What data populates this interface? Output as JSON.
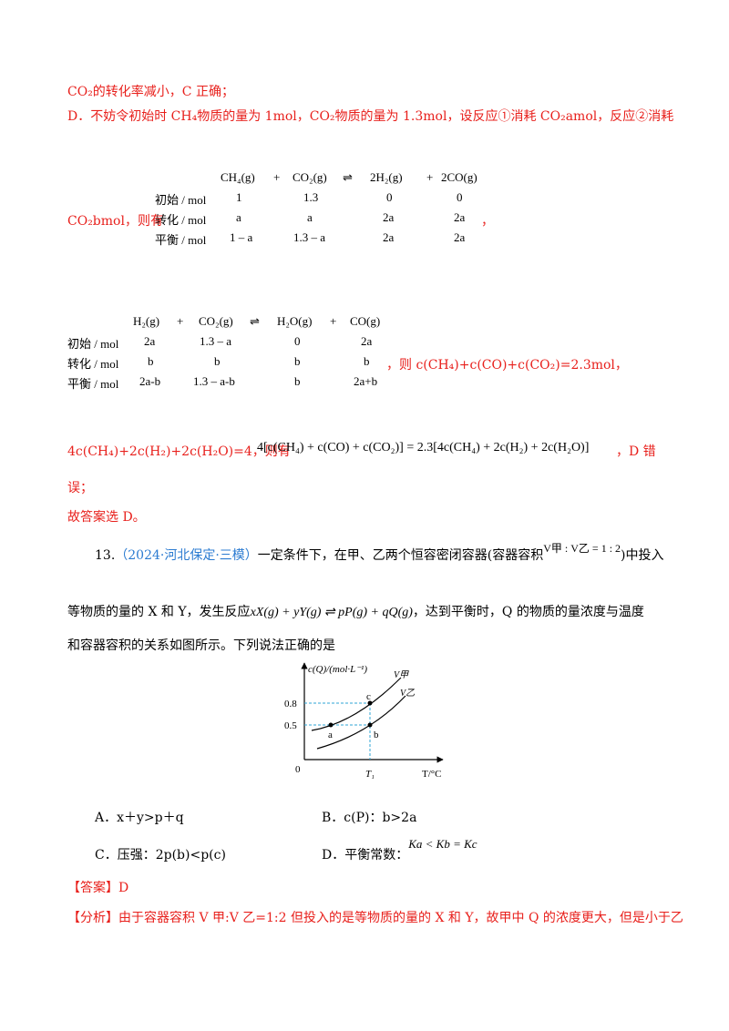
{
  "lines": {
    "l1": "CO₂的转化率减小，C 正确；",
    "l2": "D．不妨令初始时 CH₄物质的量为 1mol，CO₂物质的量为 1.3mol，设反应①消耗 CO₂amol，反应②消耗",
    "l3a": "CO₂bmol，则有",
    "l3b": "，",
    "l4": "，则 c(CH₄)+c(CO)+c(CO₂)=2.3mol，",
    "l5a": "4c(CH₄)+2c(H₂)+2c(H₂O)=4，则有",
    "l5b": "，D 错",
    "l6": "误；",
    "l7": "故答案选 D。"
  },
  "table1": {
    "header": [
      "CH₄(g)",
      "+",
      "CO₂(g)",
      "⇌",
      "2H₂(g)",
      "+",
      "2CO(g)"
    ],
    "rows": [
      {
        "label": "初始 / mol",
        "vals": [
          "1",
          "1.3",
          "0",
          "0"
        ]
      },
      {
        "label": "转化 / mol",
        "vals": [
          "a",
          "a",
          "2a",
          "2a"
        ]
      },
      {
        "label": "平衡 / mol",
        "vals": [
          "1 – a",
          "1.3 – a",
          "2a",
          "2a"
        ]
      }
    ]
  },
  "table2": {
    "header": [
      "H₂(g)",
      "+",
      "CO₂(g)",
      "⇌",
      "H₂O(g)",
      "+",
      "CO(g)"
    ],
    "rows": [
      {
        "label": "初始 / mol",
        "vals": [
          "2a",
          "1.3 – a",
          "0",
          "2a"
        ]
      },
      {
        "label": "转化 / mol",
        "vals": [
          "b",
          "b",
          "b",
          "b"
        ]
      },
      {
        "label": "平衡 / mol",
        "vals": [
          "2a-b",
          "1.3 – a-b",
          "b",
          "2a+b"
        ]
      }
    ]
  },
  "eq_D": "4[c(CH₄) + c(CO) + c(CO₂)] = 2.3[4c(CH₄) + 2c(H₂) + 2c(H₂O)]",
  "question": {
    "number": "13.",
    "source": "（2024·河北保定·三模）",
    "text1": "一定条件下，在甲、乙两个恒容密闭容器(容器容积",
    "ratio": "V甲 : V乙 = 1 : 2",
    "text1b": ")中投入",
    "text2a": "等物质的量的 X 和 Y，发生反应",
    "reaction": "xX(g) + yY(g) ⇌ pP(g) + qQ(g)",
    "text2b": "，达到平衡时，Q 的物质的量浓度与温度",
    "text3": "和容器容积的关系如图所示。下列说法正确的是"
  },
  "graph": {
    "ylabel": "c(Q)/(mol·L⁻¹)",
    "xlabel": "T/°C",
    "origin": "0",
    "yticks": [
      "0.8",
      "0.5"
    ],
    "xtick": "T₁",
    "curve_labels": [
      "V甲",
      "V乙"
    ],
    "points": [
      "a",
      "b",
      "c"
    ]
  },
  "options": {
    "A": "A．x＋y>p＋q",
    "B": "B．c(P)：b>2a",
    "C": "C．压强：2p(b)<p(c)",
    "D": "D．平衡常数：",
    "D_eq": "Ka < Kb = Kc"
  },
  "answer": {
    "label": "【答案】",
    "value": "D"
  },
  "analysis": {
    "label": "【分析】",
    "text": "由于容器容积 V 甲:V 乙=1:2 但投入的是等物质的量的 X 和 Y，故甲中 Q 的浓度更大，但是小于乙"
  }
}
